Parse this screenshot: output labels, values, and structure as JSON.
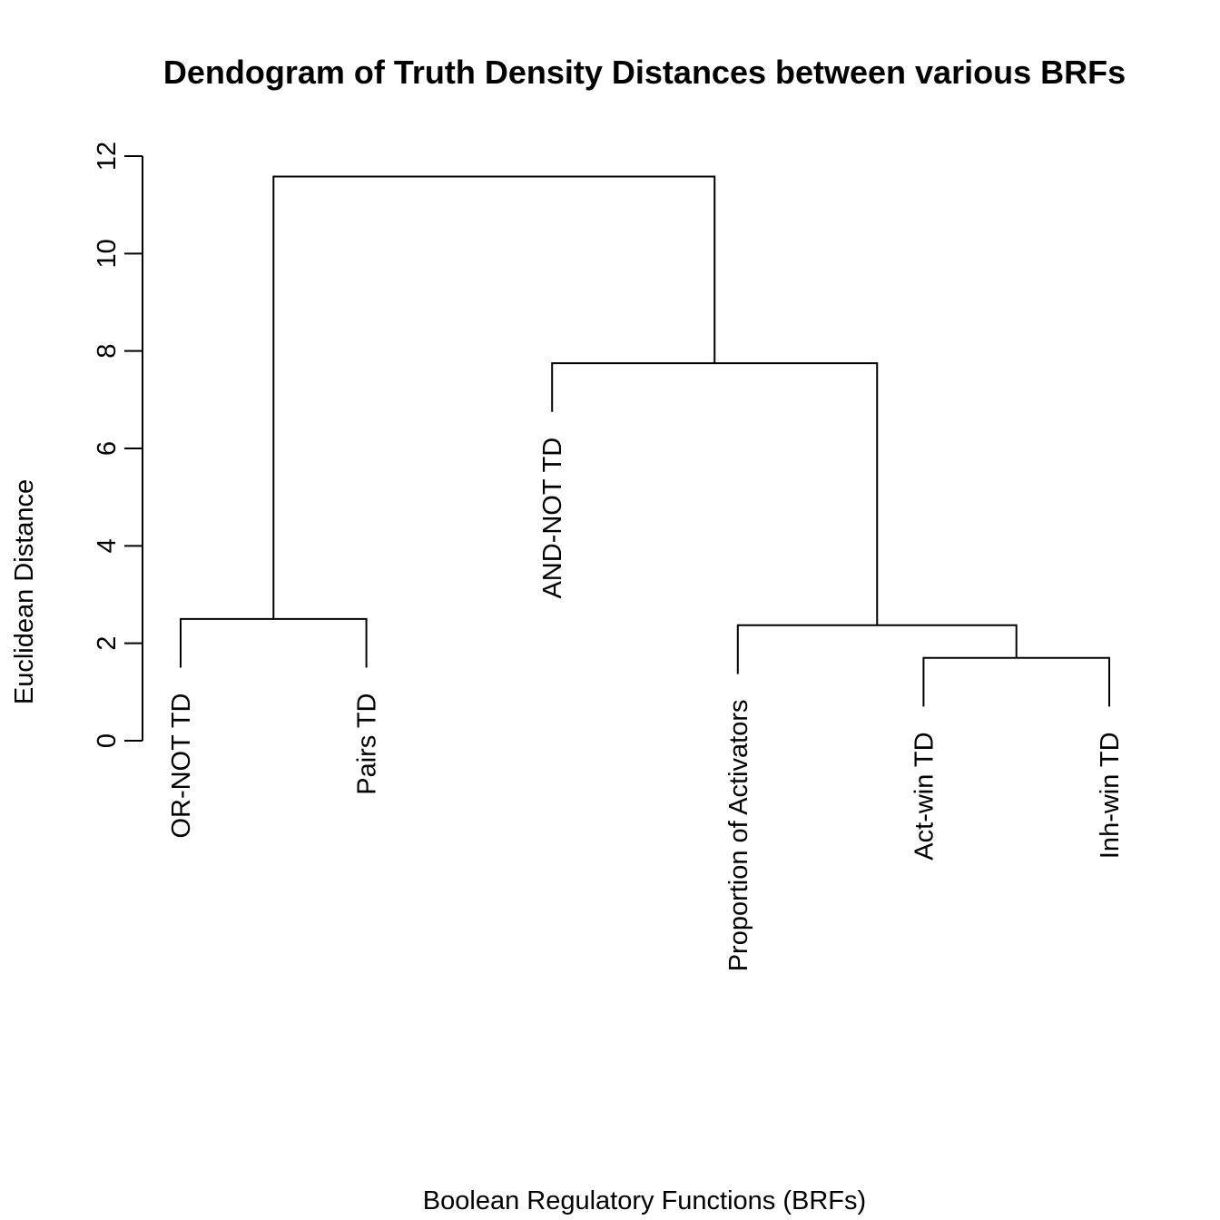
{
  "chart_data": {
    "type": "dendrogram",
    "title": "Dendogram of Truth Density Distances between various BRFs",
    "xlabel": "Boolean Regulatory Functions (BRFs)",
    "ylabel": "Euclidean Distance",
    "ylim": [
      0,
      12
    ],
    "yticks": [
      "0",
      "2",
      "4",
      "6",
      "8",
      "10",
      "12"
    ],
    "leaves": [
      {
        "label": "OR-NOT TD"
      },
      {
        "label": "Pairs TD"
      },
      {
        "label": "AND-NOT TD"
      },
      {
        "label": "Proportion of Activators"
      },
      {
        "label": "Act-win TD"
      },
      {
        "label": "Inh-win TD"
      }
    ],
    "merges": [
      {
        "left": "leaf:0",
        "right": "leaf:1",
        "height": 2.5
      },
      {
        "left": "leaf:4",
        "right": "leaf:5",
        "height": 1.7
      },
      {
        "left": "leaf:3",
        "right": "node:1",
        "height": 2.37
      },
      {
        "left": "leaf:2",
        "right": "node:2",
        "height": 7.75
      },
      {
        "left": "node:0",
        "right": "node:3",
        "height": 11.58
      }
    ],
    "grid": false,
    "legend": "none"
  }
}
